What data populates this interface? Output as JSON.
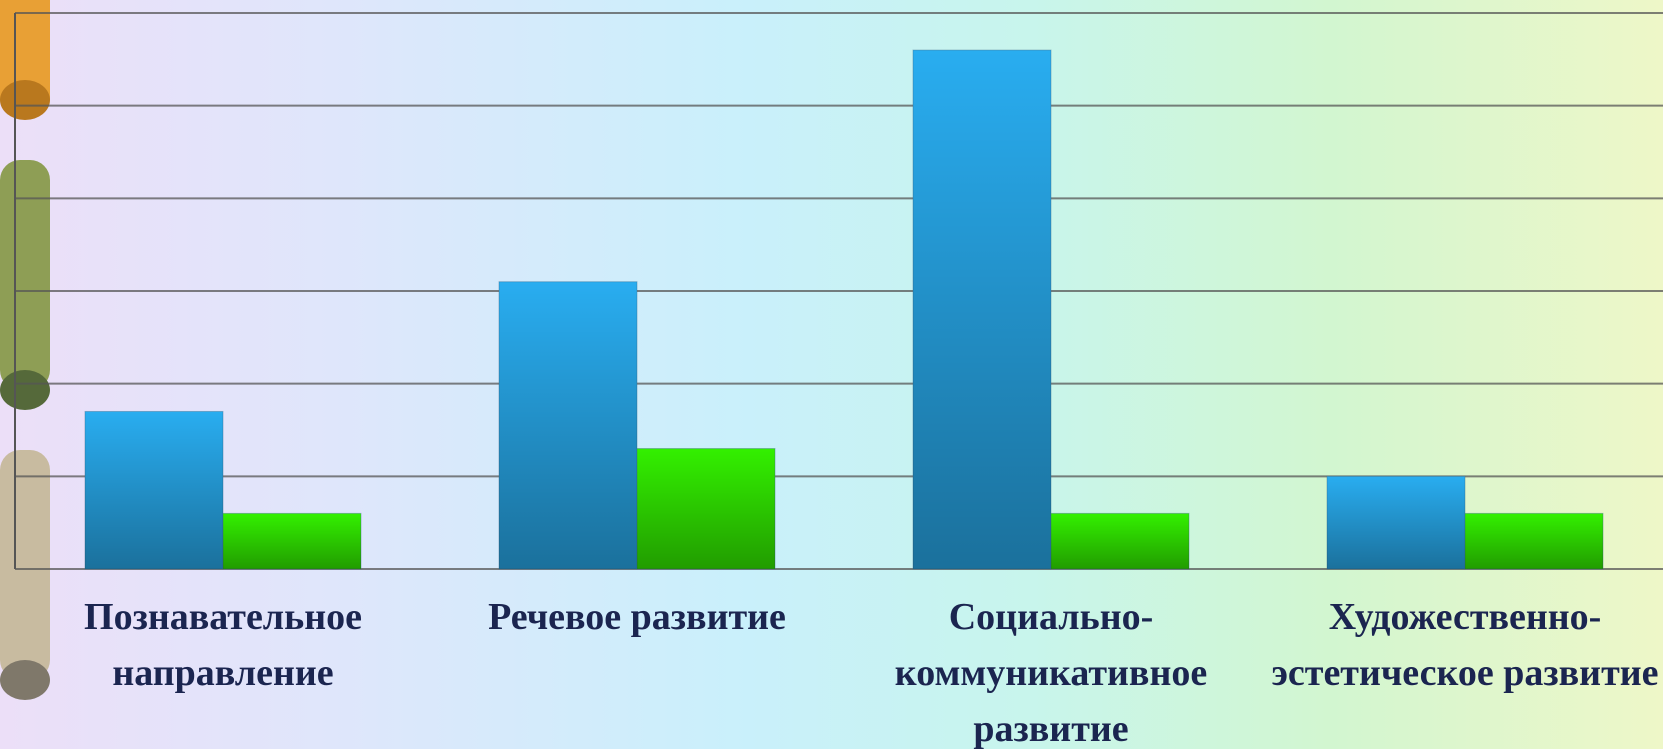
{
  "chart_data": {
    "type": "bar",
    "categories": [
      "Познавательное направление",
      "Речевое развитие",
      "Социально-коммуникативное развитие",
      "Художественно-эстетическое развитие"
    ],
    "series": [
      {
        "color": "#29adf0",
        "values": [
          1.7,
          3.1,
          5.6,
          1.0
        ]
      },
      {
        "color": "#33f000",
        "values": [
          0.6,
          1.3,
          0.6,
          0.6
        ]
      }
    ],
    "ylim": [
      0,
      6
    ],
    "yticks": [
      0,
      1,
      2,
      3,
      4,
      5,
      6
    ],
    "grid": true
  }
}
